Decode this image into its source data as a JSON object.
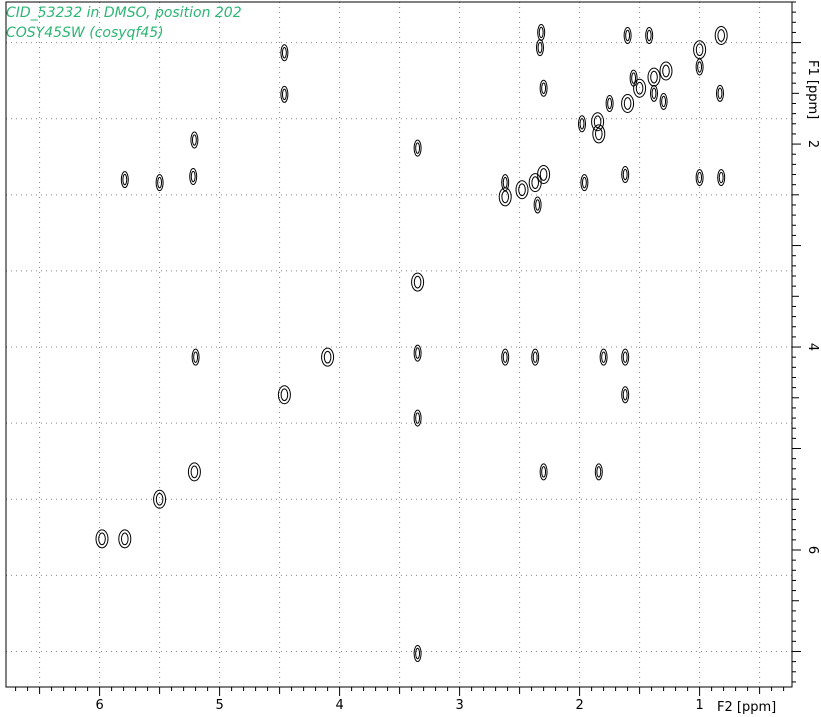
{
  "header": {
    "title": "CID_53232 in DMSO, position 202",
    "subtitle": "COSY45SW (cosyqf45)"
  },
  "chart_data": {
    "type": "scatter",
    "subtype": "2D NMR COSY contour map",
    "title": "CID_53232 in DMSO, position 202",
    "subtitle": "COSY45SW (cosyqf45)",
    "xlabel": "F2 [ppm]",
    "ylabel": "F1 [ppm]",
    "xlim": [
      6.78,
      0.23
    ],
    "ylim": [
      0.6,
      7.35
    ],
    "x_reversed": true,
    "y_direction": "increasing downward",
    "grid": true,
    "x_ticks": [
      6,
      5,
      4,
      3,
      2,
      1
    ],
    "y_ticks": [
      2,
      4,
      6
    ],
    "peaks": [
      {
        "x": 0.82,
        "y": 0.93
      },
      {
        "x": 0.83,
        "y": 1.5
      },
      {
        "x": 0.82,
        "y": 2.33
      },
      {
        "x": 1.0,
        "y": 1.07
      },
      {
        "x": 1.0,
        "y": 2.33
      },
      {
        "x": 1.0,
        "y": 1.24
      },
      {
        "x": 2.33,
        "y": 1.05
      },
      {
        "x": 2.3,
        "y": 1.45
      },
      {
        "x": 2.32,
        "y": 0.9
      },
      {
        "x": 1.6,
        "y": 0.93
      },
      {
        "x": 1.42,
        "y": 0.93
      },
      {
        "x": 1.38,
        "y": 1.34
      },
      {
        "x": 1.3,
        "y": 1.58
      },
      {
        "x": 1.5,
        "y": 1.45
      },
      {
        "x": 1.28,
        "y": 1.28
      },
      {
        "x": 1.75,
        "y": 1.6
      },
      {
        "x": 1.85,
        "y": 1.78
      },
      {
        "x": 1.98,
        "y": 1.8
      },
      {
        "x": 1.6,
        "y": 1.6
      },
      {
        "x": 1.38,
        "y": 1.5
      },
      {
        "x": 1.55,
        "y": 1.35
      },
      {
        "x": 2.3,
        "y": 2.3
      },
      {
        "x": 2.37,
        "y": 2.38
      },
      {
        "x": 2.62,
        "y": 2.38
      },
      {
        "x": 2.62,
        "y": 2.52
      },
      {
        "x": 2.48,
        "y": 2.45
      },
      {
        "x": 2.35,
        "y": 2.6
      },
      {
        "x": 1.96,
        "y": 2.38
      },
      {
        "x": 1.62,
        "y": 2.3
      },
      {
        "x": 1.84,
        "y": 1.9
      },
      {
        "x": 5.79,
        "y": 2.35
      },
      {
        "x": 5.5,
        "y": 2.38
      },
      {
        "x": 5.22,
        "y": 2.32
      },
      {
        "x": 5.21,
        "y": 1.96
      },
      {
        "x": 4.46,
        "y": 1.1
      },
      {
        "x": 4.46,
        "y": 1.51
      },
      {
        "x": 3.35,
        "y": 3.36
      },
      {
        "x": 3.35,
        "y": 2.04
      },
      {
        "x": 3.35,
        "y": 4.06
      },
      {
        "x": 3.35,
        "y": 4.7
      },
      {
        "x": 3.35,
        "y": 7.02
      },
      {
        "x": 5.2,
        "y": 4.1
      },
      {
        "x": 4.1,
        "y": 4.1
      },
      {
        "x": 2.62,
        "y": 4.1
      },
      {
        "x": 2.37,
        "y": 4.1
      },
      {
        "x": 1.8,
        "y": 4.1
      },
      {
        "x": 1.62,
        "y": 4.1
      },
      {
        "x": 4.46,
        "y": 4.47
      },
      {
        "x": 1.62,
        "y": 4.47
      },
      {
        "x": 5.21,
        "y": 5.23
      },
      {
        "x": 2.3,
        "y": 5.23
      },
      {
        "x": 1.84,
        "y": 5.23
      },
      {
        "x": 5.5,
        "y": 5.5
      },
      {
        "x": 5.98,
        "y": 5.89
      },
      {
        "x": 5.79,
        "y": 5.89
      }
    ]
  }
}
